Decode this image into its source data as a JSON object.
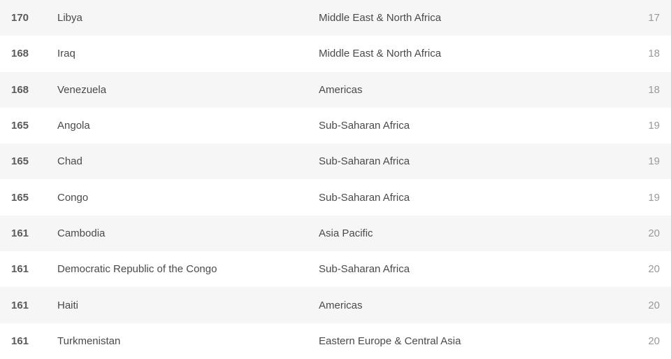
{
  "table": {
    "colors": {
      "row_odd_bg": "#f6f6f6",
      "row_even_bg": "#ffffff",
      "rank_color": "#5a5a5a",
      "text_color": "#4a4a4a",
      "score_color": "#9a9a9a"
    },
    "columns": [
      "rank",
      "country",
      "region",
      "score"
    ],
    "column_widths": [
      "66px",
      "374px",
      "auto",
      "50px"
    ],
    "font_size": 15,
    "rows": [
      {
        "rank": "170",
        "country": "Libya",
        "region": "Middle East & North Africa",
        "score": "17"
      },
      {
        "rank": "168",
        "country": "Iraq",
        "region": "Middle East & North Africa",
        "score": "18"
      },
      {
        "rank": "168",
        "country": "Venezuela",
        "region": "Americas",
        "score": "18"
      },
      {
        "rank": "165",
        "country": "Angola",
        "region": "Sub-Saharan Africa",
        "score": "19"
      },
      {
        "rank": "165",
        "country": "Chad",
        "region": "Sub-Saharan Africa",
        "score": "19"
      },
      {
        "rank": "165",
        "country": "Congo",
        "region": "Sub-Saharan Africa",
        "score": "19"
      },
      {
        "rank": "161",
        "country": "Cambodia",
        "region": "Asia Pacific",
        "score": "20"
      },
      {
        "rank": "161",
        "country": "Democratic Republic of the Congo",
        "region": "Sub-Saharan Africa",
        "score": "20"
      },
      {
        "rank": "161",
        "country": "Haiti",
        "region": "Americas",
        "score": "20"
      },
      {
        "rank": "161",
        "country": "Turkmenistan",
        "region": "Eastern Europe & Central Asia",
        "score": "20"
      }
    ]
  }
}
